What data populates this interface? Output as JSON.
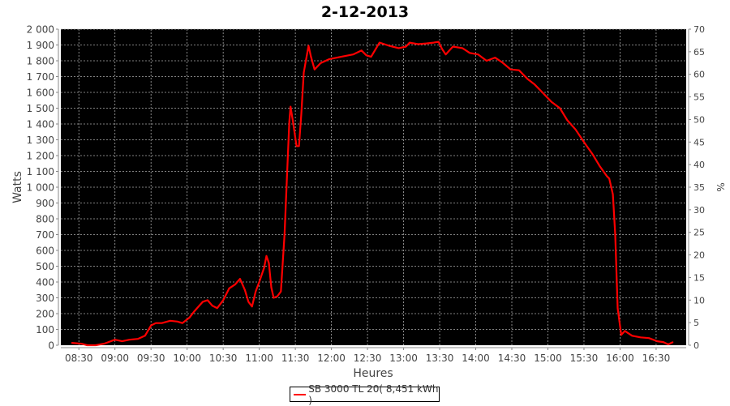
{
  "chart_data": {
    "type": "line",
    "title": "2-12-2013",
    "xlabel": "Heures",
    "ylabel": "Watts",
    "y2label": "%",
    "xlim": [
      "08:15",
      "16:55"
    ],
    "ylim": [
      0,
      2000
    ],
    "y2lim": [
      0,
      70
    ],
    "grid": true,
    "background": "#000000",
    "line_color": "#ff0000",
    "legend_placement": "bottom",
    "x_ticks": [
      "08:30",
      "09:00",
      "09:30",
      "10:00",
      "10:30",
      "11:00",
      "11:30",
      "12:00",
      "12:30",
      "13:00",
      "13:30",
      "14:00",
      "14:30",
      "15:00",
      "15:30",
      "16:00",
      "16:30"
    ],
    "y_ticks": [
      "0",
      "100",
      "200",
      "300",
      "400",
      "500",
      "600",
      "700",
      "800",
      "900",
      "1 000",
      "1 100",
      "1 200",
      "1 300",
      "1 400",
      "1 500",
      "1 600",
      "1 700",
      "1 800",
      "1 900",
      "2 000"
    ],
    "y2_ticks": [
      "0",
      "5",
      "10",
      "15",
      "20",
      "25",
      "30",
      "35",
      "40",
      "45",
      "50",
      "55",
      "60",
      "65",
      "70"
    ],
    "series": [
      {
        "name": "SB 3000 TL 20( 8,451 kWh )",
        "x": [
          "08:24",
          "08:32",
          "08:37",
          "08:44",
          "08:51",
          "09:00",
          "09:06",
          "09:12",
          "09:19",
          "09:25",
          "09:30",
          "09:34",
          "09:39",
          "09:46",
          "09:52",
          "09:56",
          "10:02",
          "10:06",
          "10:13",
          "10:17",
          "10:21",
          "10:25",
          "10:30",
          "10:35",
          "10:40",
          "10:44",
          "10:48",
          "10:51",
          "10:54",
          "10:57",
          "11:00",
          "11:04",
          "11:06",
          "11:08",
          "11:10",
          "11:12",
          "11:15",
          "11:18",
          "11:21",
          "11:23",
          "11:25",
          "11:26",
          "11:28",
          "11:31",
          "11:33",
          "11:35",
          "11:37",
          "11:41",
          "11:43",
          "11:46",
          "11:51",
          "11:58",
          "12:08",
          "12:18",
          "12:25",
          "12:29",
          "12:33",
          "12:40",
          "12:48",
          "12:56",
          "13:02",
          "13:05",
          "13:12",
          "13:19",
          "13:25",
          "13:29",
          "13:32",
          "13:35",
          "13:41",
          "13:49",
          "13:55",
          "14:02",
          "14:09",
          "14:16",
          "14:22",
          "14:29",
          "14:36",
          "14:43",
          "14:49",
          "14:56",
          "15:03",
          "15:10",
          "15:16",
          "15:23",
          "15:30",
          "15:37",
          "15:43",
          "15:49",
          "15:51",
          "15:54",
          "15:56",
          "15:58",
          "16:01",
          "16:04",
          "16:10",
          "16:17",
          "16:24",
          "16:31",
          "16:36",
          "16:40",
          "16:44"
        ],
        "values": [
          15,
          10,
          0,
          0,
          10,
          35,
          25,
          35,
          40,
          60,
          125,
          140,
          140,
          155,
          150,
          140,
          175,
          215,
          275,
          285,
          250,
          235,
          285,
          360,
          385,
          420,
          350,
          275,
          245,
          340,
          400,
          490,
          565,
          520,
          365,
          300,
          310,
          340,
          700,
          1055,
          1415,
          1510,
          1415,
          1260,
          1260,
          1465,
          1725,
          1895,
          1825,
          1745,
          1785,
          1810,
          1825,
          1840,
          1865,
          1835,
          1825,
          1915,
          1895,
          1880,
          1890,
          1915,
          1905,
          1910,
          1915,
          1920,
          1875,
          1840,
          1890,
          1880,
          1850,
          1840,
          1800,
          1820,
          1790,
          1745,
          1740,
          1685,
          1650,
          1595,
          1540,
          1500,
          1425,
          1365,
          1285,
          1210,
          1135,
          1070,
          1055,
          955,
          700,
          235,
          65,
          90,
          60,
          50,
          45,
          25,
          20,
          5,
          20
        ]
      }
    ]
  }
}
